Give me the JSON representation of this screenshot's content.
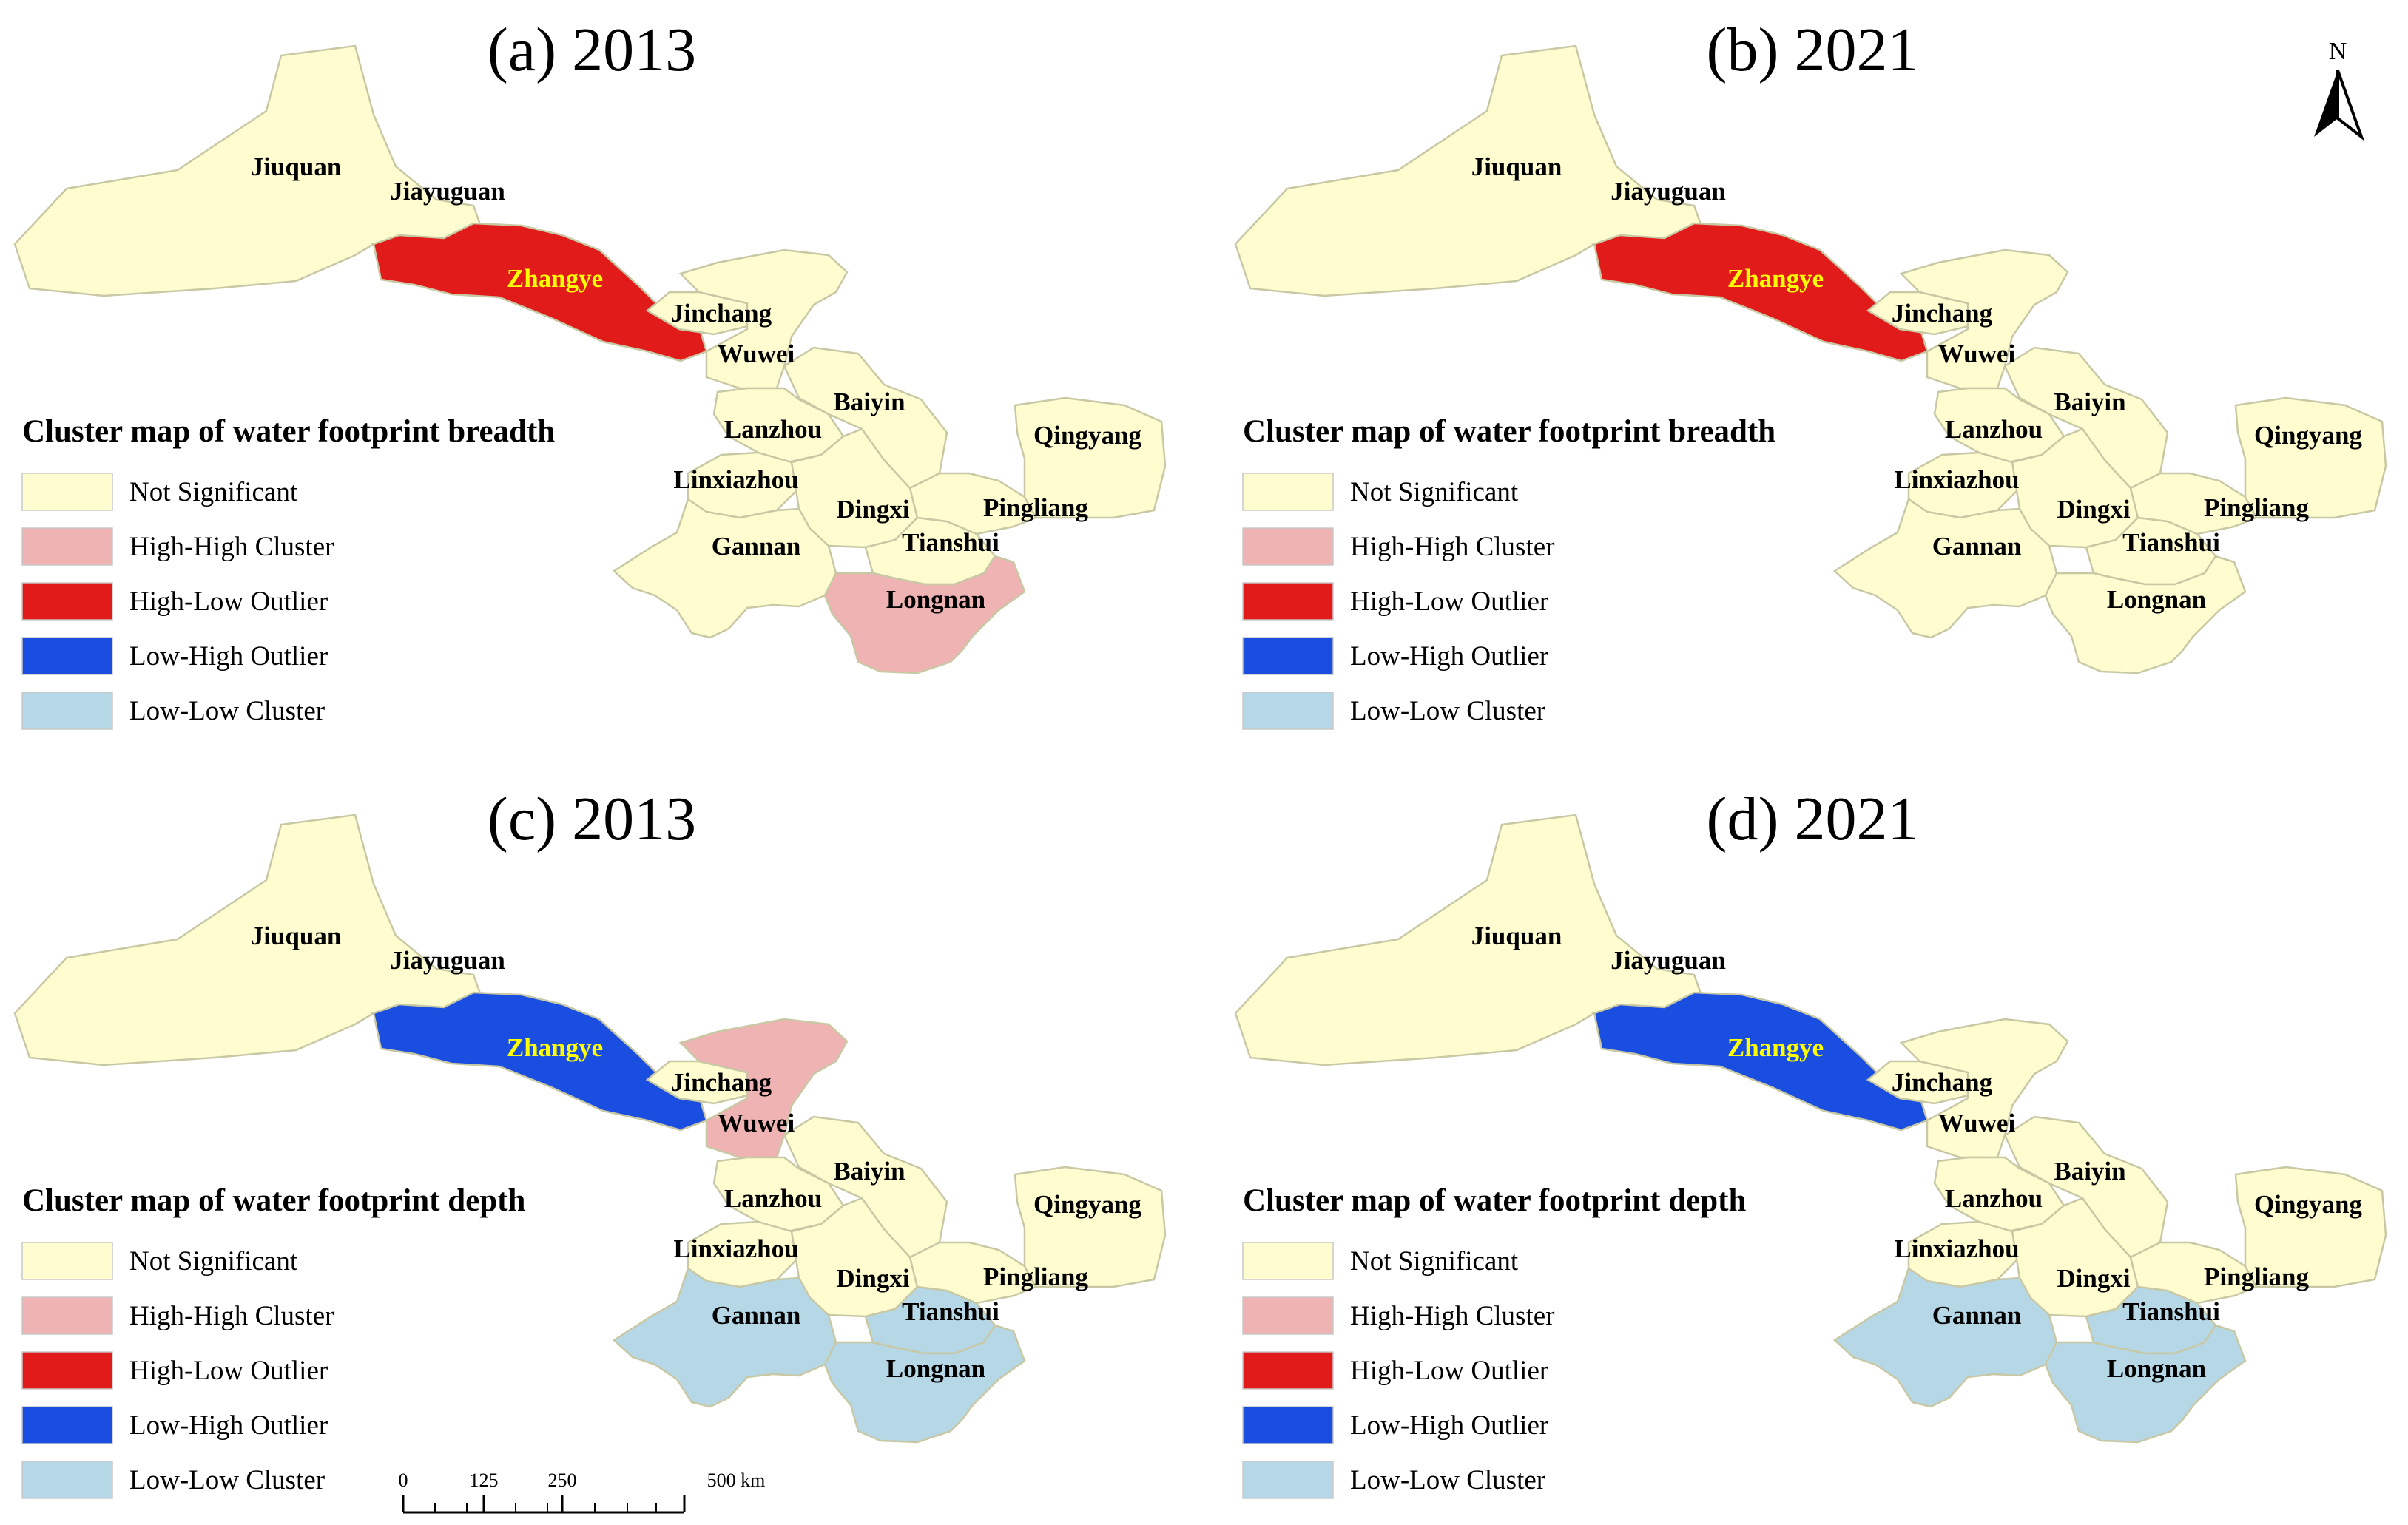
{
  "colors": {
    "not_significant": "#fffdd0",
    "high_high": "#f0b3b3",
    "high_low": "#e11a1a",
    "low_high": "#1a4ee0",
    "low_low": "#b6d7e6",
    "label_highlight": "#ffff00"
  },
  "legend_items": [
    {
      "key": "not_significant",
      "label": "Not Significant"
    },
    {
      "key": "high_high",
      "label": "High-High Cluster"
    },
    {
      "key": "high_low",
      "label": "High-Low Outlier"
    },
    {
      "key": "low_high",
      "label": "Low-High Outlier"
    },
    {
      "key": "low_low",
      "label": "Low-Low Cluster"
    }
  ],
  "panels": [
    {
      "title": "(a) 2013",
      "legend_title": "Cluster map of water footprint breadth",
      "classes": {
        "Jiuquan": "not_significant",
        "Jiayuguan": "not_significant",
        "Zhangye": "high_low",
        "Jinchang": "not_significant",
        "Wuwei": "not_significant",
        "Baiyin": "not_significant",
        "Lanzhou": "not_significant",
        "Linxiazhou": "not_significant",
        "Dingxi": "not_significant",
        "Gannan": "not_significant",
        "Tianshui": "not_significant",
        "Pingliang": "not_significant",
        "Qingyang": "not_significant",
        "Longnan": "high_high"
      }
    },
    {
      "title": "(b) 2021",
      "legend_title": "Cluster map of water footprint breadth",
      "classes": {
        "Jiuquan": "not_significant",
        "Jiayuguan": "not_significant",
        "Zhangye": "high_low",
        "Jinchang": "not_significant",
        "Wuwei": "not_significant",
        "Baiyin": "not_significant",
        "Lanzhou": "not_significant",
        "Linxiazhou": "not_significant",
        "Dingxi": "not_significant",
        "Gannan": "not_significant",
        "Tianshui": "not_significant",
        "Pingliang": "not_significant",
        "Qingyang": "not_significant",
        "Longnan": "not_significant"
      }
    },
    {
      "title": "(c) 2013",
      "legend_title": "Cluster map of water footprint depth",
      "classes": {
        "Jiuquan": "not_significant",
        "Jiayuguan": "not_significant",
        "Zhangye": "low_high",
        "Jinchang": "not_significant",
        "Wuwei": "high_high",
        "Baiyin": "not_significant",
        "Lanzhou": "not_significant",
        "Linxiazhou": "not_significant",
        "Dingxi": "not_significant",
        "Gannan": "low_low",
        "Tianshui": "low_low",
        "Pingliang": "not_significant",
        "Qingyang": "not_significant",
        "Longnan": "low_low"
      }
    },
    {
      "title": "(d) 2021",
      "legend_title": "Cluster map of water footprint depth",
      "classes": {
        "Jiuquan": "not_significant",
        "Jiayuguan": "not_significant",
        "Zhangye": "low_high",
        "Jinchang": "not_significant",
        "Wuwei": "not_significant",
        "Baiyin": "not_significant",
        "Lanzhou": "not_significant",
        "Linxiazhou": "not_significant",
        "Dingxi": "not_significant",
        "Gannan": "low_low",
        "Tianshui": "low_low",
        "Pingliang": "not_significant",
        "Qingyang": "not_significant",
        "Longnan": "low_low"
      }
    }
  ],
  "scale_bar": {
    "labels": [
      "0",
      "125",
      "250",
      "500 km"
    ]
  },
  "north_arrow": {
    "label": "N"
  }
}
